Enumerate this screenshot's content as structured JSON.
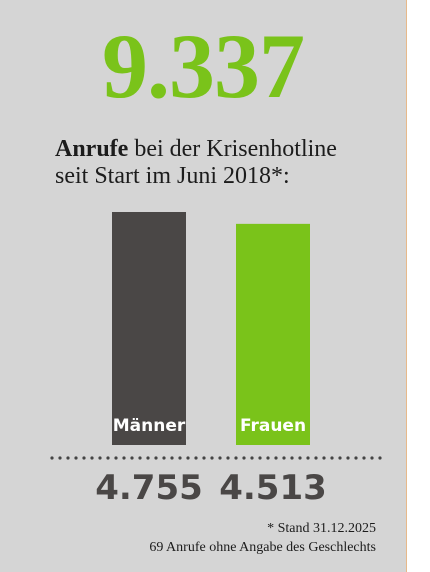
{
  "headline_number": "9.337",
  "headline": {
    "bold": "Anrufe",
    "rest_line1": " bei der Krisenhotline",
    "line2": "seit Start im Juni 2018*:"
  },
  "footnotes": {
    "line1": "* Stand 31.12.2025",
    "line2": "69 Anrufe ohne Angabe des Geschlechts"
  },
  "colors": {
    "accent": "#7ac31a",
    "dark": "#4a4746",
    "background": "#d5d5d5"
  },
  "chart_data": {
    "type": "bar",
    "categories": [
      "Männer",
      "Frauen"
    ],
    "values": [
      4755,
      4513
    ],
    "value_labels": [
      "4.755",
      "4.513"
    ],
    "bar_colors": [
      "#4a4746",
      "#7ac31a"
    ],
    "title": "",
    "xlabel": "",
    "ylabel": "",
    "ylim": [
      0,
      4755
    ],
    "grid": false,
    "legend": "none"
  }
}
